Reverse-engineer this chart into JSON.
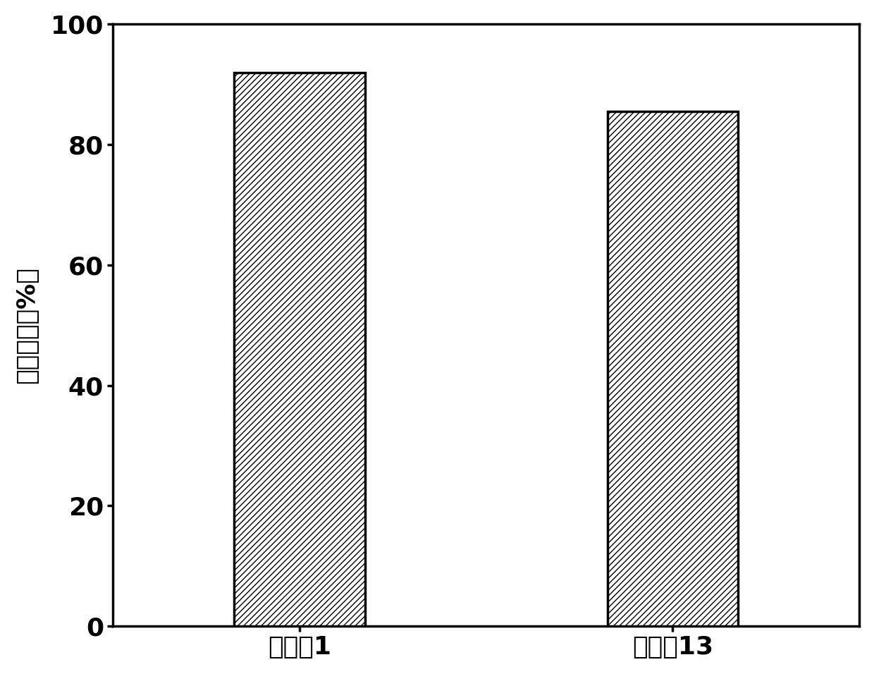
{
  "categories": [
    "实施例1",
    "实施例13"
  ],
  "values": [
    92,
    85.5
  ],
  "ylabel": "量子产率（%）",
  "ylim": [
    0,
    100
  ],
  "yticks": [
    0,
    20,
    40,
    60,
    80,
    100
  ],
  "bar_color": "#ffffff",
  "bar_edgecolor": "#000000",
  "hatch": "////",
  "background_color": "#ffffff",
  "bar_width": 0.35,
  "spine_linewidth": 2.5,
  "tick_fontsize": 26,
  "ylabel_fontsize": 26,
  "xlabel_fontsize": 26
}
